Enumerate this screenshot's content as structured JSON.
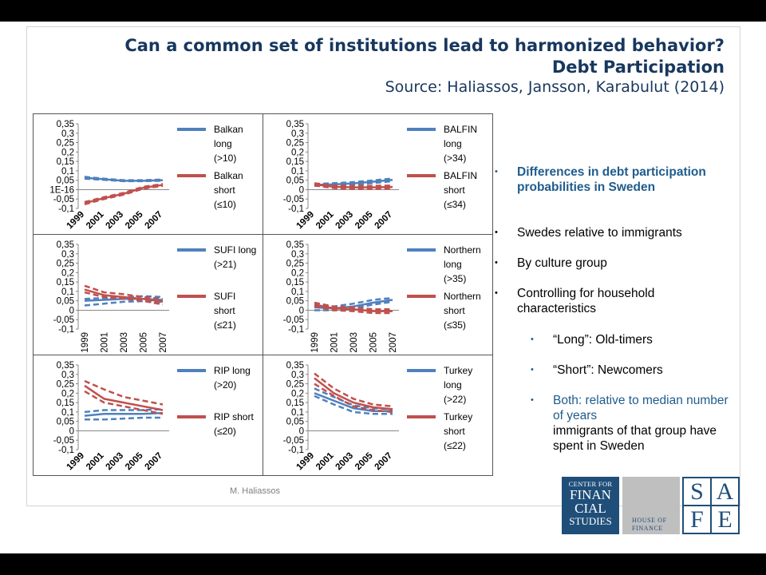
{
  "slide": {
    "title_line1": "Can a common set of institutions lead to harmonized behavior?",
    "title_line2": "Debt Participation",
    "source": "Source: Haliassos, Jansson, Karabulut (2014)",
    "footer": "M. Haliassos"
  },
  "bullets": [
    {
      "level": 1,
      "text": "Differences in debt participation probabilities in Sweden",
      "color": "#1f5c8c",
      "bold": true
    },
    {
      "level": 1,
      "text": "Swedes relative to immigrants",
      "color": "#000000",
      "bold": false
    },
    {
      "level": 1,
      "text": "By culture group",
      "color": "#000000",
      "bold": false
    },
    {
      "level": 1,
      "text": "Controlling for household characteristics",
      "color": "#000000",
      "bold": false
    },
    {
      "level": 2,
      "text": "“Long”: Old-timers",
      "color": "#000000",
      "bold": false
    },
    {
      "level": 2,
      "text": "“Short”: Newcomers",
      "color": "#000000",
      "bold": false
    },
    {
      "level": 2,
      "text_colored": "Both: relative to median number of years",
      "text": "immigrants of that group have spent in Sweden",
      "color": "#1f5c8c",
      "bold": false
    }
  ],
  "logos": {
    "cfs": [
      "CENTER FOR",
      "FINAN",
      "CIAL",
      "STUDIES"
    ],
    "hof": [
      "HOUSE OF",
      "FINANCE"
    ],
    "safe": [
      "S",
      "A",
      "F",
      "E"
    ]
  },
  "colors": {
    "long": "#4f81bd",
    "short": "#c0504d",
    "title": "#17375e"
  },
  "chart_data": [
    {
      "type": "line",
      "x": [
        "1999",
        "2001",
        "2003",
        "2005",
        "2007"
      ],
      "yticks": [
        "0,35",
        "0,3",
        "0,25",
        "0,2",
        "0,15",
        "0,1",
        "0,05",
        "1E-16",
        "-0,05",
        "-0,1"
      ],
      "ylim": [
        -0.1,
        0.35
      ],
      "xrot": true,
      "series": [
        {
          "name": "Balkan long (>10)",
          "values": [
            0.063,
            0.055,
            0.047,
            0.047,
            0.05
          ],
          "band_lo": [
            0.058,
            0.052,
            0.045,
            0.045,
            0.047
          ],
          "band_hi": [
            0.068,
            0.058,
            0.05,
            0.05,
            0.054
          ]
        },
        {
          "name": "Balkan short (≤10)",
          "values": [
            -0.072,
            -0.045,
            -0.022,
            0.01,
            0.025
          ],
          "band_lo": [
            -0.078,
            -0.05,
            -0.027,
            0.005,
            0.02
          ],
          "band_hi": [
            -0.066,
            -0.04,
            -0.017,
            0.015,
            0.03
          ]
        }
      ]
    },
    {
      "type": "line",
      "x": [
        "1999",
        "2001",
        "2003",
        "2005",
        "2007"
      ],
      "yticks": [
        "0,35",
        "0,3",
        "0,25",
        "0,2",
        "0,15",
        "0,1",
        "0,05",
        "0",
        "-0,05",
        "-0,1"
      ],
      "ylim": [
        -0.1,
        0.35
      ],
      "xrot": true,
      "series": [
        {
          "name": "BALFIN long (>34)",
          "values": [
            0.025,
            0.028,
            0.033,
            0.042,
            0.052
          ],
          "band_lo": [
            0.02,
            0.022,
            0.026,
            0.035,
            0.045
          ],
          "band_hi": [
            0.03,
            0.034,
            0.04,
            0.049,
            0.059
          ]
        },
        {
          "name": "BALFIN short (≤34)",
          "values": [
            0.028,
            0.015,
            0.012,
            0.012,
            0.014
          ],
          "band_lo": [
            0.022,
            0.008,
            0.004,
            0.004,
            0.006
          ],
          "band_hi": [
            0.034,
            0.022,
            0.02,
            0.02,
            0.022
          ]
        }
      ]
    },
    {
      "type": "line",
      "x": [
        "1999",
        "2001",
        "2003",
        "2005",
        "2007"
      ],
      "yticks": [
        "0,35",
        "0,3",
        "0,25",
        "0,2",
        "0,15",
        "0,1",
        "0,05",
        "0",
        "-0,05",
        "-0,1"
      ],
      "ylim": [
        -0.1,
        0.35
      ],
      "xrot": false,
      "series": [
        {
          "name": "SUFI long (>21)",
          "values": [
            0.05,
            0.055,
            0.06,
            0.06,
            0.055
          ],
          "band_lo": [
            0.025,
            0.035,
            0.045,
            0.048,
            0.04
          ],
          "band_hi": [
            0.06,
            0.065,
            0.068,
            0.075,
            0.07
          ]
        },
        {
          "name": "SUFI short (≤21)",
          "values": [
            0.11,
            0.08,
            0.07,
            0.06,
            0.045
          ],
          "band_lo": [
            0.095,
            0.07,
            0.06,
            0.05,
            0.03
          ],
          "band_hi": [
            0.13,
            0.095,
            0.085,
            0.07,
            0.06
          ]
        }
      ]
    },
    {
      "type": "line",
      "x": [
        "1999",
        "2001",
        "2003",
        "2005",
        "2007"
      ],
      "yticks": [
        "0,35",
        "0,3",
        "0,25",
        "0,2",
        "0,15",
        "0,1",
        "0,05",
        "0",
        "-0,05",
        "-0,1"
      ],
      "ylim": [
        -0.1,
        0.35
      ],
      "xrot": false,
      "series": [
        {
          "name": "Northern long (>35)",
          "values": [
            0.015,
            0.01,
            0.02,
            0.04,
            0.055
          ],
          "band_lo": [
            0.0,
            0.0,
            0.01,
            0.03,
            0.045
          ],
          "band_hi": [
            0.025,
            0.02,
            0.035,
            0.055,
            0.065
          ]
        },
        {
          "name": "Northern short (≤35)",
          "values": [
            0.03,
            0.01,
            0.005,
            -0.005,
            -0.005
          ],
          "band_lo": [
            0.02,
            0.0,
            -0.005,
            -0.015,
            -0.015
          ],
          "band_hi": [
            0.04,
            0.02,
            0.015,
            0.005,
            0.005
          ]
        }
      ]
    },
    {
      "type": "line",
      "x": [
        "1999",
        "2001",
        "2003",
        "2005",
        "2007"
      ],
      "yticks": [
        "0,35",
        "0,3",
        "0,25",
        "0,2",
        "0,15",
        "0,1",
        "0,05",
        "0",
        "-0,05",
        "-0,1"
      ],
      "ylim": [
        -0.1,
        0.35
      ],
      "xrot": true,
      "series": [
        {
          "name": "RIP long (>20)",
          "values": [
            0.08,
            0.09,
            0.09,
            0.09,
            0.095
          ],
          "band_lo": [
            0.06,
            0.06,
            0.065,
            0.07,
            0.07
          ],
          "band_hi": [
            0.1,
            0.11,
            0.11,
            0.11,
            0.115
          ]
        },
        {
          "name": "RIP short (≤20)",
          "values": [
            0.24,
            0.17,
            0.15,
            0.13,
            0.11
          ],
          "band_lo": [
            0.21,
            0.15,
            0.13,
            0.11,
            0.09
          ],
          "band_hi": [
            0.265,
            0.22,
            0.18,
            0.16,
            0.14
          ]
        }
      ]
    },
    {
      "type": "line",
      "x": [
        "1999",
        "2001",
        "2003",
        "2005",
        "2007"
      ],
      "yticks": [
        "0,35",
        "0,3",
        "0,25",
        "0,2",
        "0,15",
        "0,1",
        "0,05",
        "0",
        "-0,05",
        "-0,1"
      ],
      "ylim": [
        -0.1,
        0.35
      ],
      "xrot": true,
      "series": [
        {
          "name": "Turkey long (>22)",
          "values": [
            0.2,
            0.16,
            0.12,
            0.105,
            0.105
          ],
          "band_lo": [
            0.185,
            0.14,
            0.1,
            0.09,
            0.09
          ],
          "band_hi": [
            0.225,
            0.18,
            0.135,
            0.12,
            0.115
          ]
        },
        {
          "name": "Turkey short (≤22)",
          "values": [
            0.28,
            0.2,
            0.15,
            0.125,
            0.115
          ],
          "band_lo": [
            0.25,
            0.185,
            0.13,
            0.11,
            0.1
          ],
          "band_hi": [
            0.305,
            0.225,
            0.17,
            0.14,
            0.13
          ]
        }
      ]
    }
  ],
  "legend_texts": [
    [
      "Balkan\nlong\n(>10)",
      "Balkan\nshort\n(≤10)"
    ],
    [
      "BALFIN\nlong\n(>34)",
      "BALFIN\nshort\n(≤34)"
    ],
    [
      "SUFI long\n(>21)",
      "SUFI\nshort\n(≤21)"
    ],
    [
      "Northern\nlong\n(>35)",
      "Northern\nshort\n(≤35)"
    ],
    [
      "RIP long\n(>20)",
      "RIP short\n(≤20)"
    ],
    [
      "Turkey\nlong\n(>22)",
      "Turkey\nshort\n(≤22)"
    ]
  ]
}
